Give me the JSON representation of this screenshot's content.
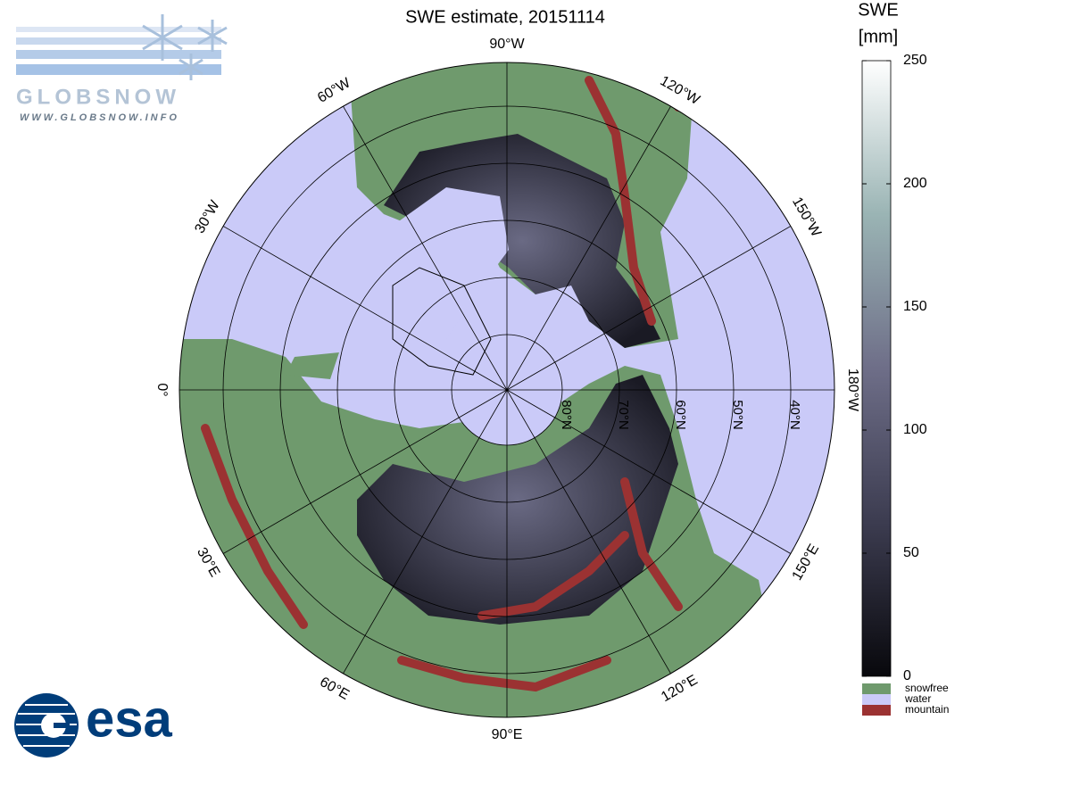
{
  "logo": {
    "name": "GLOBSNOW",
    "url": "WWW.GLOBSNOW.INFO"
  },
  "title": "SWE estimate, 20151114",
  "map": {
    "meridian_labels": [
      "90°W",
      "120°W",
      "150°W",
      "180°W",
      "150°E",
      "120°E",
      "90°E",
      "60°E",
      "30°E",
      "0°",
      "30°W",
      "60°W"
    ],
    "parallel_labels": [
      "80°N",
      "70°N",
      "60°N",
      "50°N",
      "40°N"
    ]
  },
  "colorbar": {
    "title": [
      "SWE",
      "[mm]"
    ],
    "lim": [
      0,
      250
    ],
    "ticks": [
      0,
      50,
      100,
      150,
      200,
      250
    ],
    "colors": [
      "#08080c",
      "#3c3c50",
      "#6e6e88",
      "#9ab4b4",
      "#ffffff"
    ]
  },
  "legend": [
    {
      "name": "snowfree",
      "color": "#6f9a6d"
    },
    {
      "name": "water",
      "color": "#cacaf8"
    },
    {
      "name": "mountain",
      "color": "#9b3232"
    }
  ],
  "footer_logo": "esa"
}
